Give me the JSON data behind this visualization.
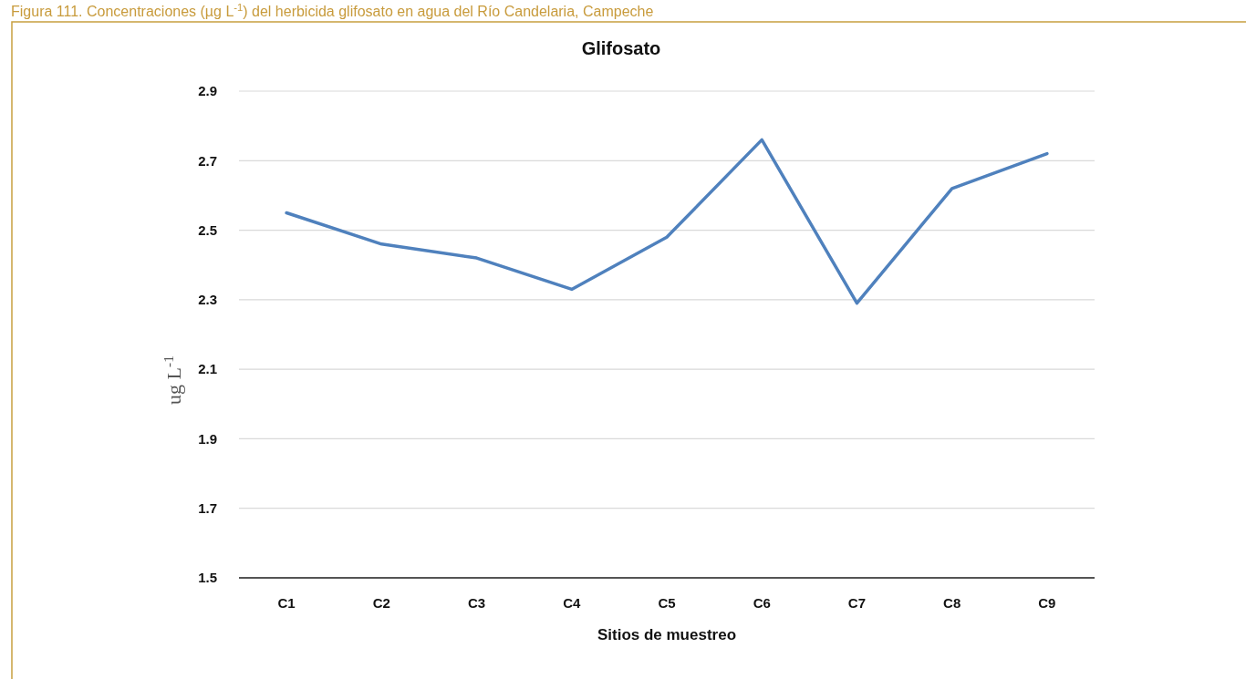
{
  "chart_data": {
    "type": "line",
    "title": "Glifosato",
    "xlabel": "Sitios de muestreo",
    "ylabel": "ug L$^{-1}$",
    "annotations": [
      "Figura 111. Concentraciones (µg L$^{-1}$) del herbicida glifosato en agua del Río Candelaria, Campeche"
    ],
    "categories": [
      "C1",
      "C2",
      "C3",
      "C4",
      "C5",
      "C6",
      "C7",
      "C8",
      "C9"
    ],
    "series": [
      {
        "color": "#4f81bd",
        "values": [
          2.55,
          2.46,
          2.42,
          2.33,
          2.48,
          2.76,
          2.29,
          2.62,
          2.72
        ]
      }
    ],
    "ylim": [
      1.5,
      2.9
    ],
    "yticks": [
      1.5,
      1.7,
      1.9,
      2.1,
      2.3,
      2.5,
      2.7,
      2.9
    ],
    "grid": "y",
    "marker": "none",
    "line_style": "solid"
  }
}
